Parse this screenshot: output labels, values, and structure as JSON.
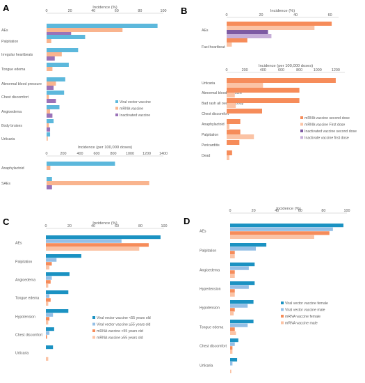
{
  "colors": {
    "viral": "#5cb8dc",
    "mrna": "#f9b48e",
    "inactivated": "#9a72b8",
    "mrna_second": "#f68c5a",
    "mrna_first": "#fbc3a5",
    "inact_second": "#7d5aa3",
    "inact_first": "#c6aed8",
    "viral_lt55": "#1b92c2",
    "viral_ge55": "#94bfe6",
    "mrna_lt55": "#f68c5a",
    "mrna_ge55": "#fbc3a5",
    "viral_female": "#1b92c2",
    "viral_male": "#94bfe6",
    "mrna_female": "#f68c5a",
    "mrna_male": "#fbc3a5"
  },
  "chart_data": [
    {
      "panel": "A",
      "type": "bar",
      "orientation": "horizontal",
      "xlabel": "Incidence (%)",
      "xlim": [
        0,
        100
      ],
      "ticks": [
        0,
        20,
        40,
        60,
        80,
        100
      ],
      "categories": [
        "AEs",
        "Palpitation",
        "Irregular heartbeats",
        "Tongue edema",
        "Abnormal blood pressure",
        "Chest discomfort",
        "Angioedema",
        "Body bruises",
        "Urticaria"
      ],
      "series": [
        {
          "name": "Viral vector vaccine",
          "color_key": "viral",
          "values": [
            95,
            33,
            27,
            19,
            16,
            15,
            11,
            6,
            3
          ]
        },
        {
          "name": "mRNA vaccine",
          "color_key": "mrna",
          "values": [
            65,
            4,
            13,
            5,
            8,
            2,
            3,
            2,
            1
          ]
        },
        {
          "name": "Inactivated vaccine",
          "color_key": "inactivated",
          "values": [
            21,
            0,
            7,
            0,
            6,
            8,
            5,
            3,
            0
          ]
        }
      ],
      "legend": "right"
    },
    {
      "panel": "A",
      "type": "bar",
      "orientation": "horizontal",
      "xlabel": "Incidence (per 100,000 doses)",
      "xlim": [
        0,
        1400
      ],
      "ticks": [
        0,
        200,
        400,
        600,
        800,
        1000,
        1200,
        1400
      ],
      "categories": [
        "Anaphylactoid",
        "SAEs"
      ],
      "series": [
        {
          "name": "Viral vector vaccine",
          "color_key": "viral",
          "values": [
            820,
            65
          ]
        },
        {
          "name": "mRNA vaccine",
          "color_key": "mrna",
          "values": [
            45,
            1230
          ]
        },
        {
          "name": "Inactivated vaccine",
          "color_key": "inactivated",
          "values": [
            0,
            65
          ]
        }
      ]
    },
    {
      "panel": "B",
      "type": "bar",
      "orientation": "horizontal",
      "xlabel": "Incidence (%)",
      "xlim": [
        0,
        65
      ],
      "ticks": [
        0,
        20,
        40,
        60
      ],
      "categories": [
        "AEs",
        "Fast heartbeat"
      ],
      "series": [
        {
          "name": "mRNA vaccine second dose",
          "color_key": "mrna_second",
          "values": [
            61,
            12
          ]
        },
        {
          "name": "mRNA vaccine First dose",
          "color_key": "mrna_first",
          "values": [
            51,
            3
          ]
        },
        {
          "name": "Inactivated vaccine second dose",
          "color_key": "inact_second",
          "values": [
            24,
            0
          ]
        },
        {
          "name": "Inactivate vaccine first dose",
          "color_key": "inact_first",
          "values": [
            26,
            0
          ]
        }
      ]
    },
    {
      "panel": "B",
      "type": "bar",
      "orientation": "horizontal",
      "xlabel": "Incidence (per 100,000 doses)",
      "xlim": [
        0,
        1300
      ],
      "ticks": [
        0,
        200,
        400,
        600,
        800,
        1000,
        1200
      ],
      "categories": [
        "Urticaria",
        "Abnormal blood pressure",
        "Bad rash all over the body",
        "Chest discomfort",
        "Anaphylactoid",
        "Palpitation",
        "Pericarditis",
        "Dead"
      ],
      "series": [
        {
          "name": "mRNA vaccine second dose",
          "color_key": "mrna_second",
          "values": [
            1200,
            800,
            800,
            390,
            150,
            150,
            140,
            60
          ]
        },
        {
          "name": "mRNA vaccine First dose",
          "color_key": "mrna_first",
          "values": [
            400,
            90,
            100,
            0,
            30,
            300,
            0,
            30
          ]
        }
      ],
      "legend": "right"
    },
    {
      "panel": "C",
      "type": "bar",
      "orientation": "horizontal",
      "xlabel": "Incidence (%)",
      "xlim": [
        0,
        100
      ],
      "ticks": [
        0,
        20,
        40,
        60,
        80,
        100
      ],
      "categories": [
        "AEs",
        "Palpitation",
        "Angioedema",
        "Tongue edema",
        "Hypotension",
        "Chest discomfort",
        "Urticaria"
      ],
      "series": [
        {
          "name": "Viral vector vaccine <55 years old",
          "color_key": "viral_lt55",
          "values": [
            97,
            30,
            20,
            19,
            19,
            7,
            6
          ]
        },
        {
          "name": "Viral vector vaccine ≥55 years old",
          "color_key": "viral_ge55",
          "values": [
            64,
            9,
            5,
            3,
            6,
            3,
            0
          ]
        },
        {
          "name": "mRNA vaccine <55 years old",
          "color_key": "mrna_lt55",
          "values": [
            87,
            5,
            4,
            4,
            3,
            1,
            0
          ]
        },
        {
          "name": "mRNA vaccine ≥55 years old",
          "color_key": "mrna_ge55",
          "values": [
            79,
            3,
            2,
            2,
            2,
            0,
            2
          ]
        }
      ],
      "legend": "right"
    },
    {
      "panel": "D",
      "type": "bar",
      "orientation": "horizontal",
      "xlabel": "Incidence (%)",
      "xlim": [
        0,
        100
      ],
      "ticks": [
        0,
        20,
        40,
        60,
        80,
        100
      ],
      "categories": [
        "AEs",
        "Palpitation",
        "Angioedema",
        "Hypertension",
        "Hypotension",
        "Tongue edema",
        "Chest discomfort",
        "Urticaria"
      ],
      "series": [
        {
          "name": "Viral vector vaccine female",
          "color_key": "viral_female",
          "values": [
            97,
            31,
            21,
            21,
            20,
            20,
            7,
            6
          ]
        },
        {
          "name": "Viral vector vaccine male",
          "color_key": "viral_male",
          "values": [
            88,
            22,
            16,
            16,
            15,
            15,
            4,
            2
          ]
        },
        {
          "name": "mRNA vaccine female",
          "color_key": "mrna_female",
          "values": [
            85,
            4,
            4,
            4,
            4,
            4,
            2,
            0
          ]
        },
        {
          "name": "mRNA vaccine male",
          "color_key": "mrna_male",
          "values": [
            72,
            4,
            4,
            4,
            3,
            5,
            2,
            1
          ]
        }
      ],
      "legend": "right"
    }
  ],
  "panel_labels": [
    "A",
    "B",
    "C",
    "D"
  ]
}
